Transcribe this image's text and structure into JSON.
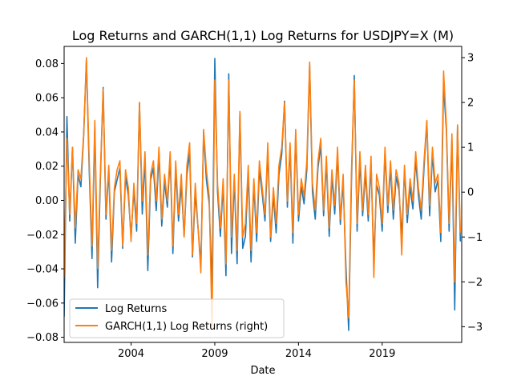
{
  "chart_data": {
    "type": "line",
    "title": "Log Returns and GARCH(1,1) Log Returns for USDJPY=X (M)",
    "xlabel": "Date",
    "ylabel": "",
    "ylabel_right": "",
    "x_ticks": [
      "2004",
      "2009",
      "2014",
      "2019"
    ],
    "y_ticks_left": [
      "−0.08",
      "−0.06",
      "−0.04",
      "−0.02",
      "0.00",
      "0.02",
      "0.04",
      "0.06",
      "0.08"
    ],
    "y_ticks_right": [
      "−3",
      "−2",
      "−1",
      "0",
      "1",
      "2",
      "3"
    ],
    "xlim": [
      "2000-01",
      "2023-10"
    ],
    "ylim_left": [
      -0.083,
      0.09
    ],
    "ylim_right": [
      -3.35,
      3.25
    ],
    "grid": false,
    "legend_position": "lower-left",
    "series": [
      {
        "name": "Log Returns",
        "axis": "left",
        "color": "#1f77b4",
        "x": [
          "2000-01",
          "2000-03",
          "2000-05",
          "2000-07",
          "2000-09",
          "2000-11",
          "2001-01",
          "2001-03",
          "2001-05",
          "2001-07",
          "2001-09",
          "2001-11",
          "2002-01",
          "2002-03",
          "2002-05",
          "2002-07",
          "2002-09",
          "2002-11",
          "2003-01",
          "2003-03",
          "2003-05",
          "2003-07",
          "2003-09",
          "2003-11",
          "2004-01",
          "2004-03",
          "2004-05",
          "2004-07",
          "2004-09",
          "2004-11",
          "2005-01",
          "2005-03",
          "2005-05",
          "2005-07",
          "2005-09",
          "2005-11",
          "2006-01",
          "2006-03",
          "2006-05",
          "2006-07",
          "2006-09",
          "2006-11",
          "2007-01",
          "2007-03",
          "2007-05",
          "2007-07",
          "2007-09",
          "2007-11",
          "2008-01",
          "2008-03",
          "2008-05",
          "2008-07",
          "2008-09",
          "2008-11",
          "2009-01",
          "2009-03",
          "2009-05",
          "2009-07",
          "2009-09",
          "2009-11",
          "2010-01",
          "2010-03",
          "2010-05",
          "2010-07",
          "2010-09",
          "2010-11",
          "2011-01",
          "2011-03",
          "2011-05",
          "2011-07",
          "2011-09",
          "2011-11",
          "2012-01",
          "2012-03",
          "2012-05",
          "2012-07",
          "2012-09",
          "2012-11",
          "2013-01",
          "2013-03",
          "2013-05",
          "2013-07",
          "2013-09",
          "2013-11",
          "2014-01",
          "2014-03",
          "2014-05",
          "2014-07",
          "2014-09",
          "2014-11",
          "2015-01",
          "2015-03",
          "2015-05",
          "2015-07",
          "2015-09",
          "2015-11",
          "2016-01",
          "2016-03",
          "2016-05",
          "2016-07",
          "2016-09",
          "2016-11",
          "2017-01",
          "2017-03",
          "2017-05",
          "2017-07",
          "2017-09",
          "2017-11",
          "2018-01",
          "2018-03",
          "2018-05",
          "2018-07",
          "2018-09",
          "2018-11",
          "2019-01",
          "2019-03",
          "2019-05",
          "2019-07",
          "2019-09",
          "2019-11",
          "2020-01",
          "2020-03",
          "2020-05",
          "2020-07",
          "2020-09",
          "2020-11",
          "2021-01",
          "2021-03",
          "2021-05",
          "2021-07",
          "2021-09",
          "2021-11",
          "2022-01",
          "2022-03",
          "2022-05",
          "2022-07",
          "2022-09",
          "2022-11",
          "2023-01",
          "2023-03",
          "2023-05",
          "2023-07",
          "2023-09"
        ],
        "values": [
          -0.068,
          0.049,
          -0.012,
          0.031,
          -0.025,
          0.015,
          0.008,
          0.038,
          0.082,
          0.018,
          -0.034,
          0.043,
          -0.051,
          0.012,
          0.066,
          -0.011,
          0.018,
          -0.036,
          0.005,
          0.012,
          0.019,
          -0.028,
          0.014,
          0.003,
          -0.021,
          0.006,
          -0.018,
          0.057,
          -0.008,
          0.024,
          -0.041,
          0.012,
          0.019,
          -0.006,
          0.027,
          -0.015,
          0.011,
          -0.004,
          0.025,
          -0.031,
          0.018,
          -0.012,
          0.009,
          -0.021,
          0.015,
          0.028,
          -0.033,
          0.004,
          -0.016,
          -0.038,
          0.04,
          0.012,
          -0.002,
          -0.052,
          0.083,
          0.005,
          -0.021,
          0.009,
          -0.044,
          0.074,
          -0.031,
          0.012,
          -0.037,
          0.051,
          -0.028,
          -0.021,
          0.016,
          -0.036,
          0.009,
          -0.024,
          0.018,
          0.004,
          -0.012,
          0.029,
          -0.024,
          0.003,
          -0.019,
          0.015,
          0.027,
          0.058,
          -0.004,
          0.031,
          -0.025,
          0.039,
          -0.012,
          0.008,
          -0.002,
          0.018,
          0.079,
          0.005,
          -0.011,
          0.019,
          0.032,
          -0.009,
          0.022,
          -0.021,
          0.014,
          -0.008,
          0.027,
          -0.014,
          0.011,
          -0.039,
          -0.076,
          0.012,
          0.073,
          -0.018,
          0.023,
          -0.009,
          0.016,
          -0.012,
          0.021,
          -0.035,
          0.009,
          0.003,
          -0.018,
          0.028,
          -0.007,
          0.019,
          -0.011,
          0.014,
          0.006,
          -0.021,
          0.017,
          -0.013,
          0.008,
          -0.005,
          0.024,
          0.003,
          -0.011,
          0.019,
          0.046,
          -0.009,
          0.027,
          0.005,
          0.012,
          -0.024,
          0.067,
          0.041,
          -0.018,
          0.035,
          -0.064,
          0.044,
          -0.024
        ]
      },
      {
        "name": "GARCH(1,1) Log Returns (right)",
        "axis": "right",
        "color": "#ff7f0e",
        "x": [
          "2000-01",
          "2000-03",
          "2000-05",
          "2000-07",
          "2000-09",
          "2000-11",
          "2001-01",
          "2001-03",
          "2001-05",
          "2001-07",
          "2001-09",
          "2001-11",
          "2002-01",
          "2002-03",
          "2002-05",
          "2002-07",
          "2002-09",
          "2002-11",
          "2003-01",
          "2003-03",
          "2003-05",
          "2003-07",
          "2003-09",
          "2003-11",
          "2004-01",
          "2004-03",
          "2004-05",
          "2004-07",
          "2004-09",
          "2004-11",
          "2005-01",
          "2005-03",
          "2005-05",
          "2005-07",
          "2005-09",
          "2005-11",
          "2006-01",
          "2006-03",
          "2006-05",
          "2006-07",
          "2006-09",
          "2006-11",
          "2007-01",
          "2007-03",
          "2007-05",
          "2007-07",
          "2007-09",
          "2007-11",
          "2008-01",
          "2008-03",
          "2008-05",
          "2008-07",
          "2008-09",
          "2008-11",
          "2009-01",
          "2009-03",
          "2009-05",
          "2009-07",
          "2009-09",
          "2009-11",
          "2010-01",
          "2010-03",
          "2010-05",
          "2010-07",
          "2010-09",
          "2010-11",
          "2011-01",
          "2011-03",
          "2011-05",
          "2011-07",
          "2011-09",
          "2011-11",
          "2012-01",
          "2012-03",
          "2012-05",
          "2012-07",
          "2012-09",
          "2012-11",
          "2013-01",
          "2013-03",
          "2013-05",
          "2013-07",
          "2013-09",
          "2013-11",
          "2014-01",
          "2014-03",
          "2014-05",
          "2014-07",
          "2014-09",
          "2014-11",
          "2015-01",
          "2015-03",
          "2015-05",
          "2015-07",
          "2015-09",
          "2015-11",
          "2016-01",
          "2016-03",
          "2016-05",
          "2016-07",
          "2016-09",
          "2016-11",
          "2017-01",
          "2017-03",
          "2017-05",
          "2017-07",
          "2017-09",
          "2017-11",
          "2018-01",
          "2018-03",
          "2018-05",
          "2018-07",
          "2018-09",
          "2018-11",
          "2019-01",
          "2019-03",
          "2019-05",
          "2019-07",
          "2019-09",
          "2019-11",
          "2020-01",
          "2020-03",
          "2020-05",
          "2020-07",
          "2020-09",
          "2020-11",
          "2021-01",
          "2021-03",
          "2021-05",
          "2021-07",
          "2021-09",
          "2021-11",
          "2022-01",
          "2022-03",
          "2022-05",
          "2022-07",
          "2022-09",
          "2022-11",
          "2023-01",
          "2023-03",
          "2023-05",
          "2023-07",
          "2023-09"
        ],
        "values": [
          -1.9,
          1.2,
          -0.5,
          1.0,
          -0.8,
          0.5,
          0.3,
          1.3,
          3.0,
          0.7,
          -1.2,
          1.6,
          -1.7,
          0.4,
          2.3,
          -0.5,
          0.6,
          -1.3,
          0.1,
          0.5,
          0.7,
          -1.2,
          0.5,
          0.1,
          -1.1,
          0.2,
          -0.7,
          2.0,
          -0.2,
          0.9,
          -1.4,
          0.4,
          0.7,
          -0.2,
          1.0,
          -0.6,
          0.4,
          -0.2,
          0.9,
          -1.2,
          0.7,
          -0.5,
          0.4,
          -1.0,
          0.6,
          1.1,
          -1.4,
          0.2,
          -0.8,
          -1.8,
          1.4,
          0.5,
          -0.1,
          -3.0,
          2.5,
          0.2,
          -0.8,
          0.3,
          -1.6,
          2.5,
          -1.0,
          0.4,
          -1.3,
          1.8,
          -1.0,
          -0.7,
          0.6,
          -1.3,
          0.3,
          -0.9,
          0.7,
          0.1,
          -0.5,
          1.1,
          -1.0,
          0.1,
          -0.7,
          0.6,
          1.0,
          2.0,
          -0.2,
          1.1,
          -0.9,
          1.4,
          -0.5,
          0.3,
          -0.1,
          0.7,
          2.9,
          0.2,
          -0.4,
          0.7,
          1.2,
          -0.4,
          0.8,
          -0.8,
          0.5,
          -0.3,
          1.0,
          -0.6,
          0.4,
          -2.0,
          -2.8,
          0.5,
          2.5,
          -0.7,
          0.9,
          -0.4,
          0.6,
          -0.5,
          0.8,
          -1.9,
          0.4,
          0.1,
          -0.7,
          1.0,
          -0.3,
          0.7,
          -0.4,
          0.5,
          0.2,
          -1.4,
          0.6,
          -0.5,
          0.3,
          -0.2,
          0.9,
          0.1,
          -0.4,
          0.7,
          1.6,
          -0.3,
          1.0,
          0.2,
          0.4,
          -0.9,
          2.7,
          1.5,
          -0.7,
          1.3,
          -2.0,
          1.5,
          -0.9
        ]
      }
    ]
  }
}
